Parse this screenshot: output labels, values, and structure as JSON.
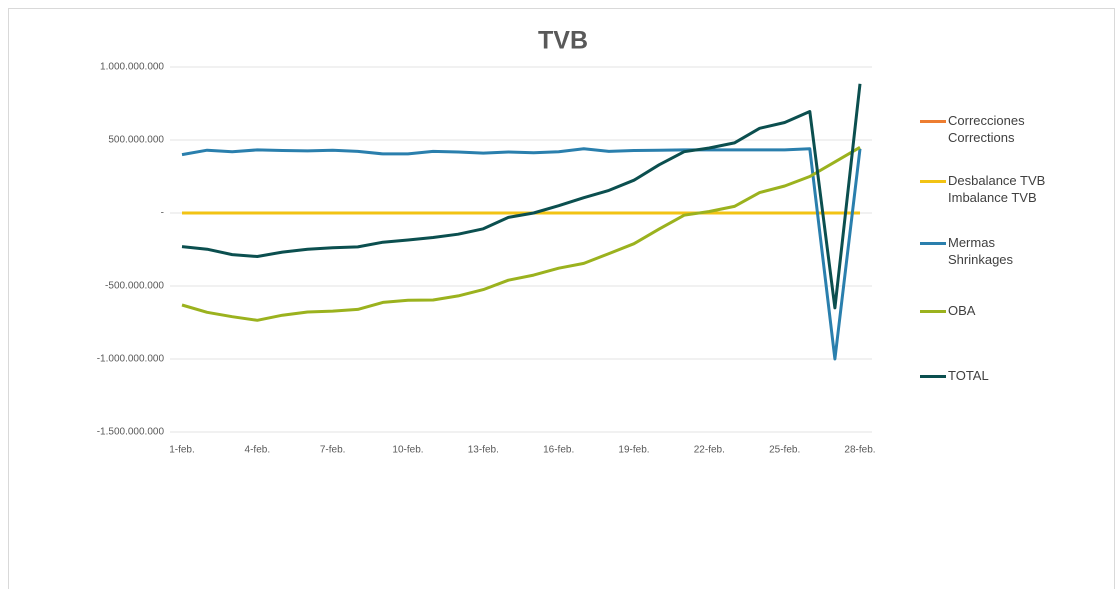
{
  "chart_data": {
    "type": "line",
    "title": "TVB",
    "categories": [
      "1-feb.",
      null,
      null,
      "4-feb.",
      null,
      null,
      "7-feb.",
      null,
      null,
      "10-feb.",
      null,
      null,
      "13-feb.",
      null,
      null,
      "16-feb.",
      null,
      null,
      "19-feb.",
      null,
      null,
      "22-feb.",
      null,
      null,
      "25-feb.",
      null,
      null,
      "28-feb."
    ],
    "series": [
      {
        "name": "Correcciones\nCorrections",
        "color": "#ed7d31",
        "values": [
          0,
          0,
          0,
          0,
          0,
          0,
          0,
          0,
          0,
          0,
          0,
          0,
          0,
          0,
          0,
          0,
          0,
          0,
          0,
          0,
          0,
          0,
          0,
          0,
          0,
          0,
          0,
          0
        ]
      },
      {
        "name": "Desbalance TVB\nImbalance TVB",
        "color": "#f2c314",
        "values": [
          0,
          0,
          0,
          0,
          0,
          0,
          0,
          0,
          0,
          0,
          0,
          0,
          0,
          0,
          0,
          0,
          0,
          0,
          0,
          0,
          0,
          0,
          0,
          0,
          0,
          0,
          0,
          0
        ]
      },
      {
        "name": "Mermas\nShrinkages",
        "color": "#2a7fad",
        "values": [
          400000000,
          430000000,
          420000000,
          432000000,
          428000000,
          425000000,
          430000000,
          422000000,
          405000000,
          405000000,
          422000000,
          418000000,
          410000000,
          418000000,
          412000000,
          420000000,
          440000000,
          422000000,
          428000000,
          430000000,
          432000000,
          432000000,
          432000000,
          432000000,
          432000000,
          440000000,
          -1000000000,
          440000000
        ]
      },
      {
        "name": "OBA",
        "color": "#9bb21e",
        "values": [
          -630000000,
          -680000000,
          -710000000,
          -735000000,
          -700000000,
          -678000000,
          -672000000,
          -660000000,
          -612000000,
          -598000000,
          -596000000,
          -568000000,
          -525000000,
          -460000000,
          -425000000,
          -378000000,
          -345000000,
          -278000000,
          -210000000,
          -110000000,
          -15000000,
          10000000,
          45000000,
          140000000,
          185000000,
          250000000,
          350000000,
          450000000
        ]
      },
      {
        "name": "TOTAL",
        "color": "#0b4f4f",
        "values": [
          -230000000,
          -248000000,
          -285000000,
          -298000000,
          -268000000,
          -248000000,
          -238000000,
          -232000000,
          -200000000,
          -185000000,
          -168000000,
          -145000000,
          -108000000,
          -30000000,
          0,
          50000000,
          105000000,
          155000000,
          225000000,
          330000000,
          420000000,
          445000000,
          480000000,
          580000000,
          620000000,
          695000000,
          -650000000,
          885000000
        ]
      }
    ],
    "ylim": [
      -1500000000,
      1000000000
    ],
    "yticks": [
      {
        "value": -1500000000,
        "label": "-1.500.000.000"
      },
      {
        "value": -1000000000,
        "label": "-1.000.000.000"
      },
      {
        "value": -500000000,
        "label": "-500.000.000"
      },
      {
        "value": 0,
        "label": "-"
      },
      {
        "value": 500000000,
        "label": "500.000.000"
      },
      {
        "value": 1000000000,
        "label": "1.000.000.000"
      }
    ],
    "grid": true,
    "legend": "right"
  }
}
